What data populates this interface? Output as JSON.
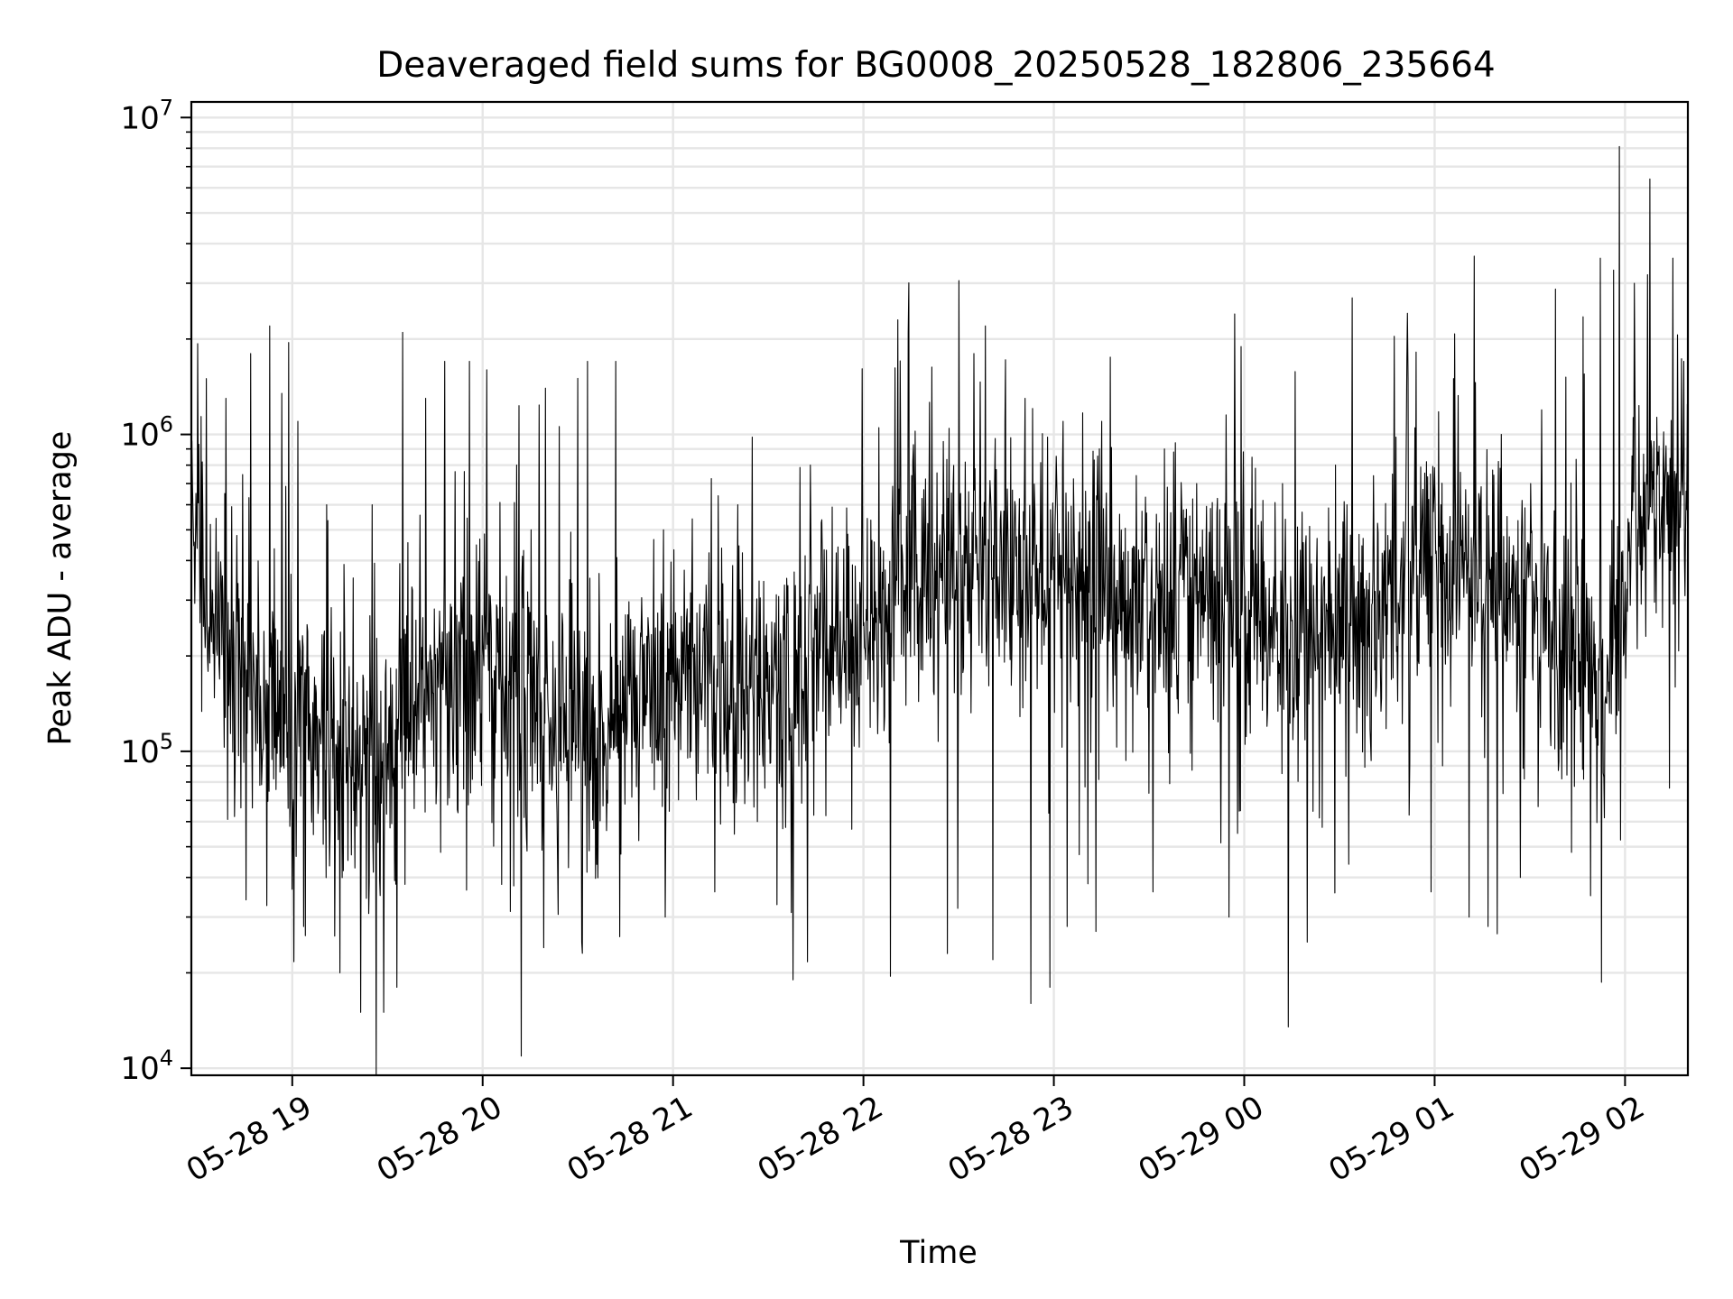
{
  "chart_data": {
    "type": "line",
    "title": "Deaveraged field sums for BG0008_20250528_182806_235664",
    "xlabel": "Time",
    "ylabel": "Peak ADU - average",
    "x_ticks": [
      "05-28 19",
      "05-28 20",
      "05-28 21",
      "05-28 22",
      "05-28 23",
      "05-29 00",
      "05-29 01",
      "05-29 02"
    ],
    "x_tick_hours": [
      19,
      20,
      21,
      22,
      23,
      24,
      25,
      26
    ],
    "y_ticks": [
      {
        "value": 10000,
        "base": "10",
        "exp": "4"
      },
      {
        "value": 100000,
        "base": "10",
        "exp": "5"
      },
      {
        "value": 1000000,
        "base": "10",
        "exp": "6"
      },
      {
        "value": 10000000,
        "base": "10",
        "exp": "7"
      }
    ],
    "xlim_hours": [
      18.47,
      26.33
    ],
    "ylim": [
      9500,
      11200000
    ],
    "yscale": "log",
    "grid": true,
    "line_color": "#000000",
    "grid_color": "#e6e6e6",
    "series": [
      {
        "x_hours": [
          18.47,
          18.6,
          18.8,
          19.0,
          19.2,
          19.4,
          19.6,
          19.8,
          20.0,
          20.2,
          20.4,
          20.6,
          20.8,
          21.0,
          21.2,
          21.4,
          21.6,
          21.8,
          22.0,
          22.2,
          22.4,
          22.6,
          22.8,
          23.0,
          23.2,
          23.4,
          23.6,
          23.8,
          24.0,
          24.2,
          24.4,
          24.6,
          24.8,
          25.0,
          25.2,
          25.4,
          25.6,
          25.8,
          25.9,
          26.0,
          26.1,
          26.2,
          26.33
        ],
        "baseline": [
          600000,
          220000,
          160000,
          130000,
          100000,
          90000,
          130000,
          170000,
          190000,
          150000,
          120000,
          110000,
          140000,
          170000,
          170000,
          170000,
          160000,
          210000,
          260000,
          330000,
          380000,
          400000,
          390000,
          380000,
          320000,
          300000,
          320000,
          320000,
          320000,
          240000,
          230000,
          250000,
          330000,
          380000,
          360000,
          300000,
          280000,
          200000,
          170000,
          330000,
          650000,
          650000,
          600000
        ],
        "spikes": [
          [
            18.55,
            1500000
          ],
          [
            18.65,
            1300000
          ],
          [
            18.78,
            1800000
          ],
          [
            18.88,
            2200000
          ],
          [
            18.98,
            1950000
          ],
          [
            19.03,
            1100000
          ],
          [
            19.18,
            600000
          ],
          [
            19.42,
            600000
          ],
          [
            19.58,
            2100000
          ],
          [
            19.7,
            1300000
          ],
          [
            19.8,
            1700000
          ],
          [
            19.93,
            1700000
          ],
          [
            20.02,
            1600000
          ],
          [
            20.18,
            800000
          ],
          [
            20.33,
            1400000
          ],
          [
            20.55,
            1700000
          ],
          [
            20.7,
            1700000
          ],
          [
            20.95,
            500000
          ],
          [
            21.34,
            600000
          ],
          [
            21.72,
            800000
          ],
          [
            22.08,
            1050000
          ],
          [
            22.18,
            2300000
          ],
          [
            22.42,
            950000
          ],
          [
            22.58,
            1800000
          ],
          [
            22.64,
            2200000
          ],
          [
            22.85,
            1300000
          ],
          [
            23.05,
            1100000
          ],
          [
            23.25,
            1100000
          ],
          [
            23.58,
            900000
          ],
          [
            23.75,
            700000
          ],
          [
            23.95,
            2400000
          ],
          [
            24.2,
            700000
          ],
          [
            24.48,
            800000
          ],
          [
            24.78,
            750000
          ],
          [
            25.1,
            1500000
          ],
          [
            25.35,
            1000000
          ],
          [
            25.78,
            2350000
          ],
          [
            25.87,
            3600000
          ],
          [
            25.94,
            3300000
          ],
          [
            25.97,
            8100000
          ],
          [
            26.05,
            3000000
          ],
          [
            26.13,
            6400000
          ],
          [
            26.25,
            3600000
          ],
          [
            26.31,
            1700000
          ]
        ],
        "dips": [
          [
            18.95,
            90000
          ],
          [
            19.06,
            28000
          ],
          [
            19.25,
            20000
          ],
          [
            19.36,
            15000
          ],
          [
            19.48,
            15000
          ],
          [
            19.55,
            18000
          ],
          [
            19.78,
            48000
          ],
          [
            20.1,
            38000
          ],
          [
            20.32,
            24000
          ],
          [
            20.52,
            25000
          ],
          [
            20.72,
            26000
          ],
          [
            20.96,
            30000
          ],
          [
            21.22,
            36000
          ],
          [
            21.62,
            31000
          ],
          [
            21.63,
            19000
          ],
          [
            22.14,
            19500
          ],
          [
            22.44,
            23000
          ],
          [
            22.68,
            22000
          ],
          [
            22.88,
            16000
          ],
          [
            22.98,
            18000
          ],
          [
            23.07,
            28000
          ],
          [
            23.22,
            27000
          ],
          [
            23.52,
            36000
          ],
          [
            23.92,
            30000
          ],
          [
            24.23,
            13500
          ],
          [
            24.33,
            25000
          ],
          [
            24.55,
            44000
          ],
          [
            24.98,
            36000
          ],
          [
            25.18,
            30000
          ],
          [
            25.28,
            28000
          ],
          [
            25.45,
            40000
          ],
          [
            25.72,
            48000
          ],
          [
            25.82,
            35000
          ]
        ]
      }
    ]
  }
}
